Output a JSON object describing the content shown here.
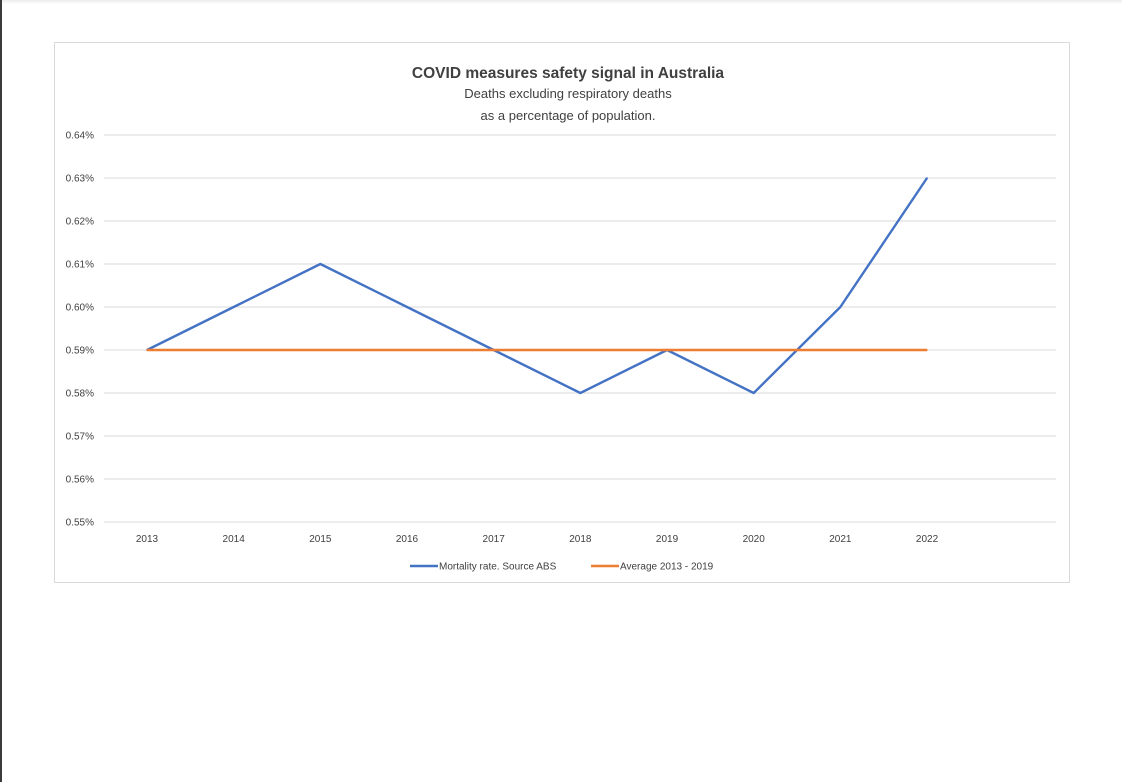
{
  "chart_data": {
    "type": "line",
    "title": "COVID measures safety signal in Australia",
    "subtitle_lines": [
      "Deaths excluding respiratory deaths",
      "as a percentage of population."
    ],
    "x": [
      "2013",
      "2014",
      "2015",
      "2016",
      "2017",
      "2018",
      "2019",
      "2020",
      "2021",
      "2022"
    ],
    "ylim": [
      0.55,
      0.64
    ],
    "y_ticks": [
      0.55,
      0.56,
      0.57,
      0.58,
      0.59,
      0.6,
      0.61,
      0.62,
      0.63,
      0.64
    ],
    "y_tick_labels": [
      "0.55%",
      "0.56%",
      "0.57%",
      "0.58%",
      "0.59%",
      "0.60%",
      "0.61%",
      "0.62%",
      "0.63%",
      "0.64%"
    ],
    "grid": true,
    "legend_position": "bottom",
    "series": [
      {
        "name": "Mortality rate. Source ABS",
        "color": "#4472c4",
        "values": [
          0.59,
          0.6,
          0.61,
          0.6,
          0.59,
          0.58,
          0.59,
          0.58,
          0.6,
          0.63
        ]
      },
      {
        "name": "Average 2013 - 2019",
        "color": "#ed7d31",
        "values": [
          0.59,
          0.59,
          0.59,
          0.59,
          0.59,
          0.59,
          0.59,
          0.59,
          0.59,
          0.59
        ]
      }
    ]
  }
}
